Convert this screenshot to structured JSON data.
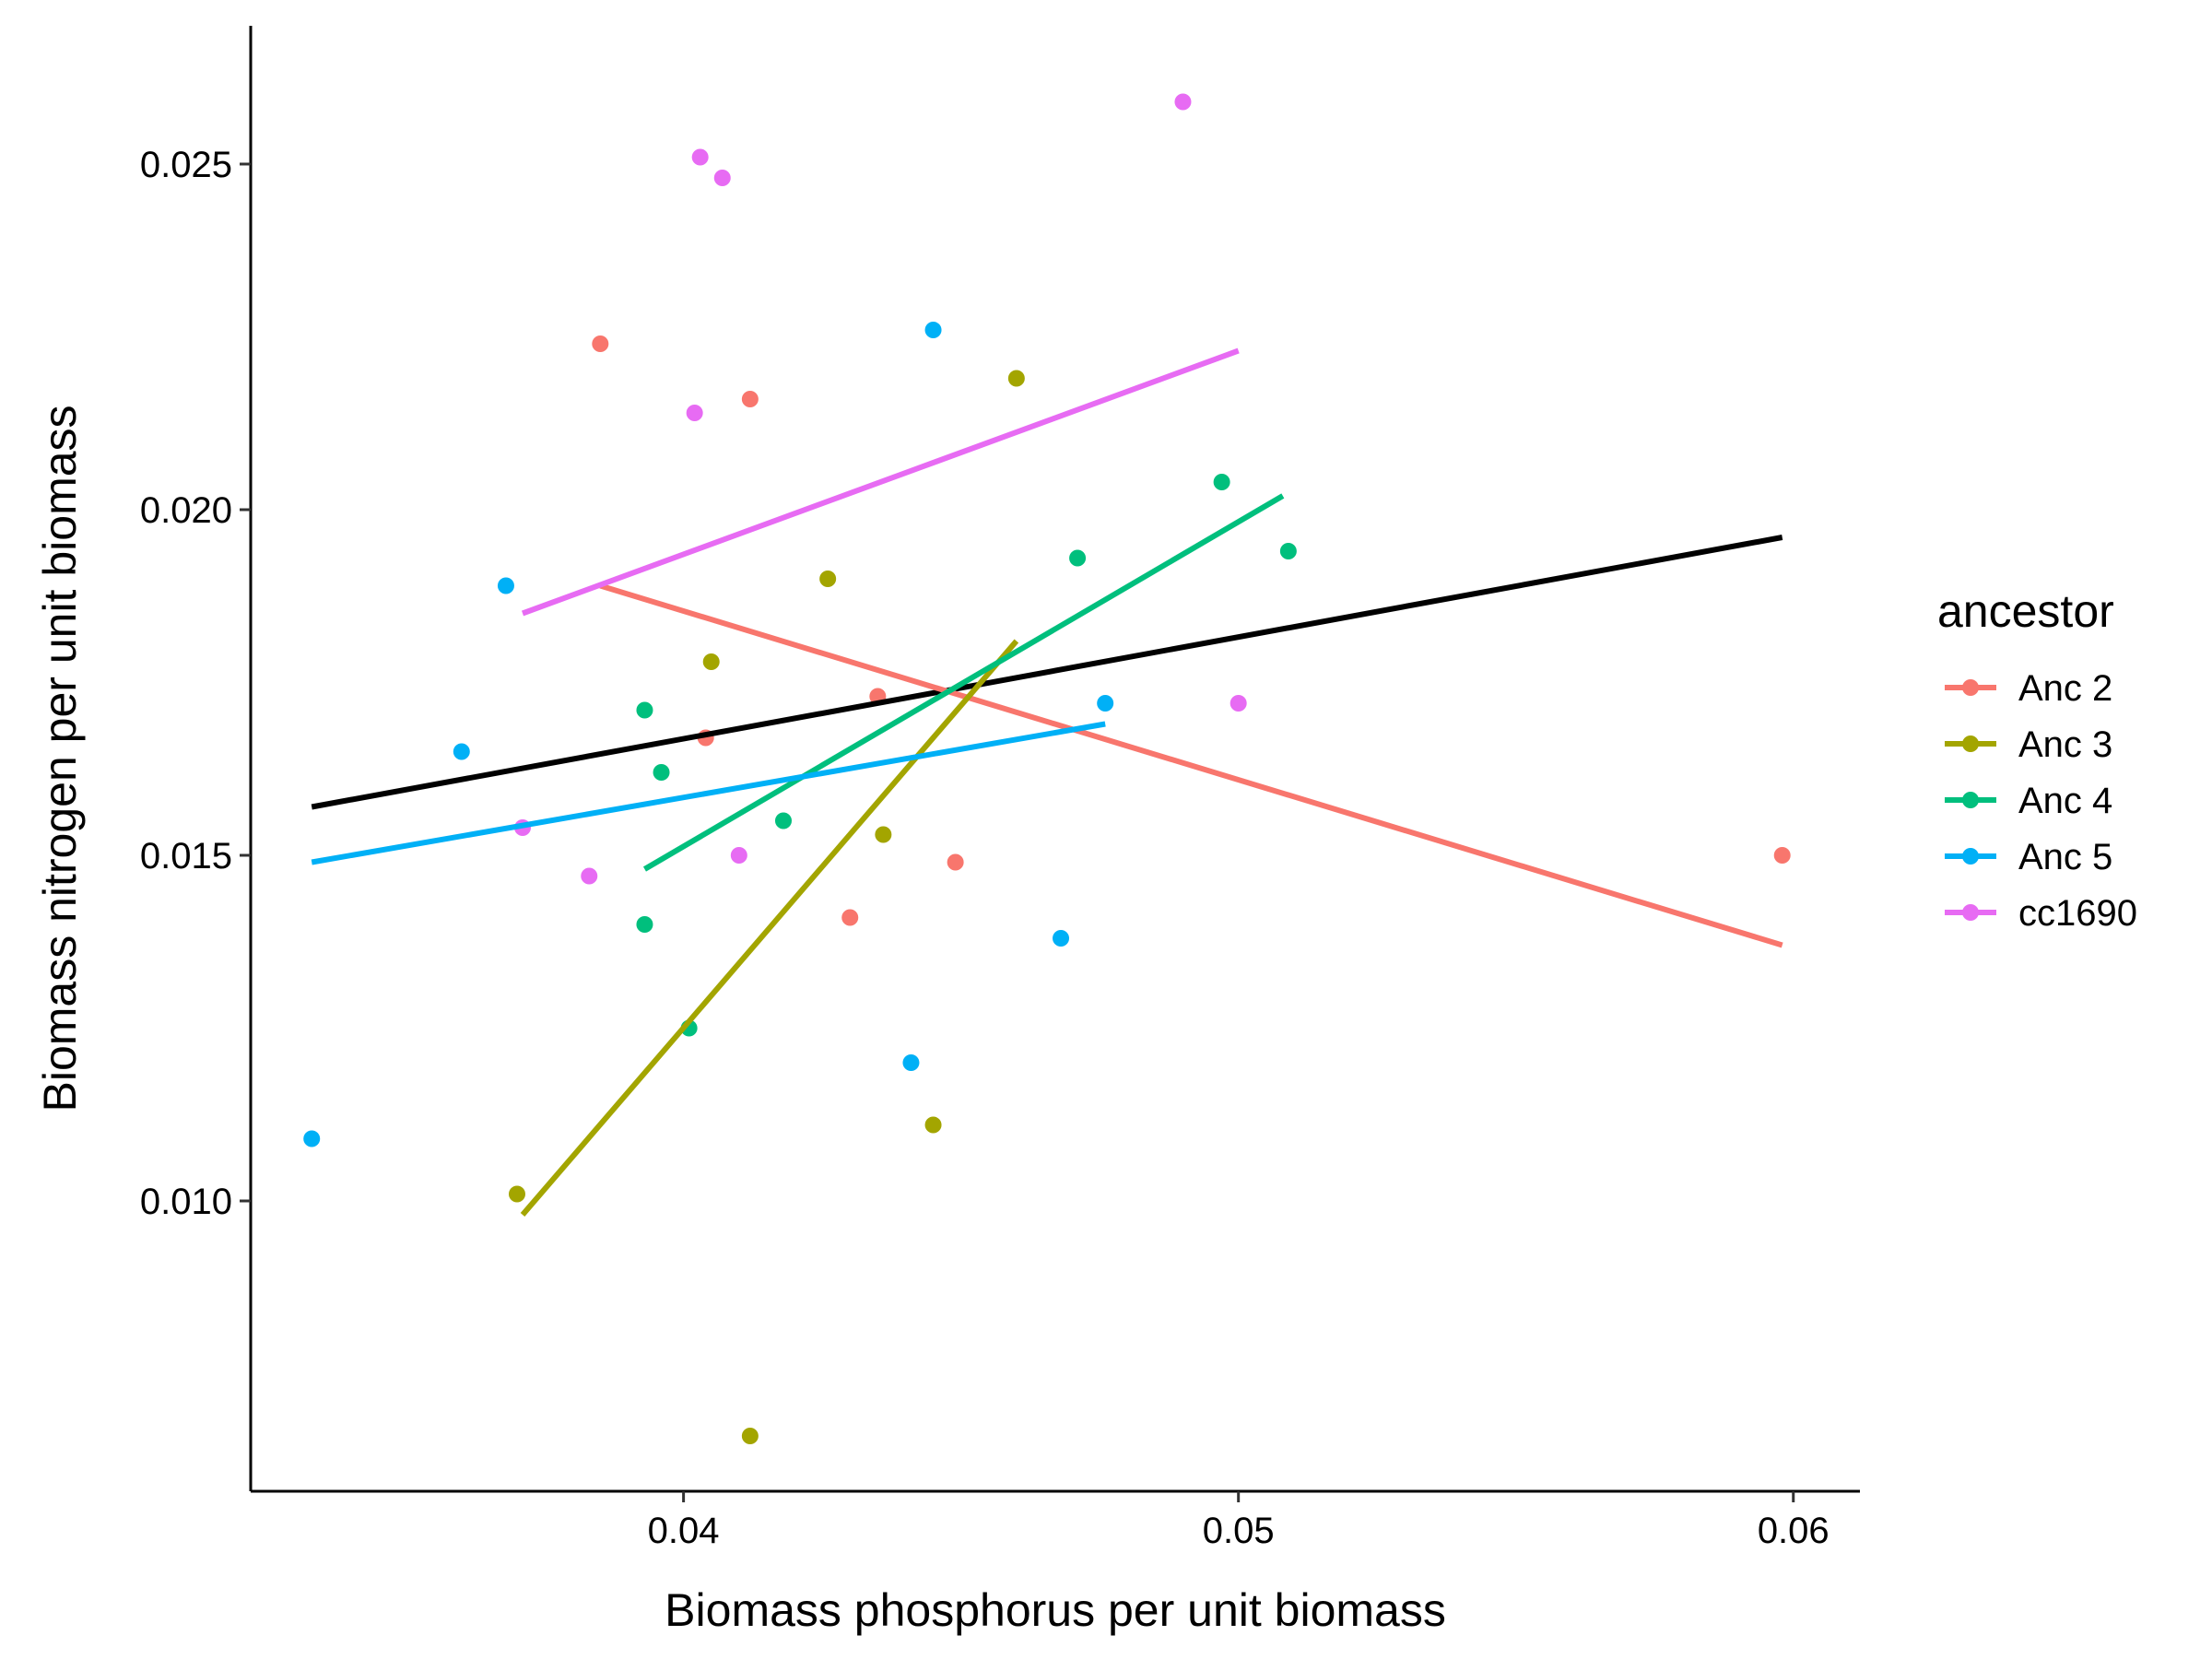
{
  "chart_data": {
    "type": "scatter",
    "title": "",
    "xlabel": "Biomass phosphorus per unit biomass",
    "ylabel": "Biomass nitrogen per unit biomass",
    "xlim": [
      0.0322,
      0.0612
    ],
    "ylim": [
      0.0058,
      0.027
    ],
    "x_ticks": [
      {
        "value": 0.04,
        "label": "0.04"
      },
      {
        "value": 0.05,
        "label": "0.05"
      },
      {
        "value": 0.06,
        "label": "0.06"
      }
    ],
    "y_ticks": [
      {
        "value": 0.01,
        "label": "0.010"
      },
      {
        "value": 0.015,
        "label": "0.015"
      },
      {
        "value": 0.02,
        "label": "0.020"
      },
      {
        "value": 0.025,
        "label": "0.025"
      }
    ],
    "grid": false,
    "legend": {
      "title": "ancestor",
      "position": "right"
    },
    "series": [
      {
        "name": "Anc 2",
        "color": "#F8766D",
        "points": [
          {
            "x": 0.0385,
            "y": 0.0224
          },
          {
            "x": 0.0412,
            "y": 0.0216
          },
          {
            "x": 0.0404,
            "y": 0.0167
          },
          {
            "x": 0.0435,
            "y": 0.0173
          },
          {
            "x": 0.043,
            "y": 0.0141
          },
          {
            "x": 0.0449,
            "y": 0.0149
          },
          {
            "x": 0.0598,
            "y": 0.015
          }
        ],
        "fit": {
          "x": [
            0.0385,
            0.0598
          ],
          "y": [
            0.0189,
            0.0137
          ]
        }
      },
      {
        "name": "Anc 3",
        "color": "#A3A500",
        "points": [
          {
            "x": 0.046,
            "y": 0.0219
          },
          {
            "x": 0.0426,
            "y": 0.019
          },
          {
            "x": 0.0405,
            "y": 0.0178
          },
          {
            "x": 0.0436,
            "y": 0.0153
          },
          {
            "x": 0.037,
            "y": 0.0101
          },
          {
            "x": 0.0445,
            "y": 0.0111
          },
          {
            "x": 0.0412,
            "y": 0.0066
          }
        ],
        "fit": {
          "x": [
            0.0371,
            0.046
          ],
          "y": [
            0.0098,
            0.0181
          ]
        }
      },
      {
        "name": "Anc 4",
        "color": "#00BF7D",
        "points": [
          {
            "x": 0.0497,
            "y": 0.0204
          },
          {
            "x": 0.0509,
            "y": 0.0194
          },
          {
            "x": 0.0471,
            "y": 0.0193
          },
          {
            "x": 0.0393,
            "y": 0.0171
          },
          {
            "x": 0.0396,
            "y": 0.0162
          },
          {
            "x": 0.0418,
            "y": 0.0155
          },
          {
            "x": 0.0393,
            "y": 0.014
          },
          {
            "x": 0.0401,
            "y": 0.0125
          }
        ],
        "fit": {
          "x": [
            0.0393,
            0.0508
          ],
          "y": [
            0.0148,
            0.0202
          ]
        }
      },
      {
        "name": "Anc 5",
        "color": "#00B0F6",
        "points": [
          {
            "x": 0.0445,
            "y": 0.0226
          },
          {
            "x": 0.0368,
            "y": 0.0189
          },
          {
            "x": 0.0476,
            "y": 0.0172
          },
          {
            "x": 0.036,
            "y": 0.0165
          },
          {
            "x": 0.0468,
            "y": 0.0138
          },
          {
            "x": 0.0441,
            "y": 0.012
          },
          {
            "x": 0.0333,
            "y": 0.0109
          }
        ],
        "fit": {
          "x": [
            0.0333,
            0.0476
          ],
          "y": [
            0.0149,
            0.0169
          ]
        }
      },
      {
        "name": "cc1690",
        "color": "#E76BF3",
        "points": [
          {
            "x": 0.049,
            "y": 0.0259
          },
          {
            "x": 0.0403,
            "y": 0.0251
          },
          {
            "x": 0.0407,
            "y": 0.0248
          },
          {
            "x": 0.0402,
            "y": 0.0214
          },
          {
            "x": 0.05,
            "y": 0.0172
          },
          {
            "x": 0.0371,
            "y": 0.0154
          },
          {
            "x": 0.041,
            "y": 0.015
          },
          {
            "x": 0.0383,
            "y": 0.0147
          }
        ],
        "fit": {
          "x": [
            0.0371,
            0.05
          ],
          "y": [
            0.0185,
            0.0223
          ]
        }
      }
    ],
    "overall_fit": {
      "color": "#000000",
      "x": [
        0.0333,
        0.0598
      ],
      "y": [
        0.0157,
        0.0196
      ]
    }
  }
}
